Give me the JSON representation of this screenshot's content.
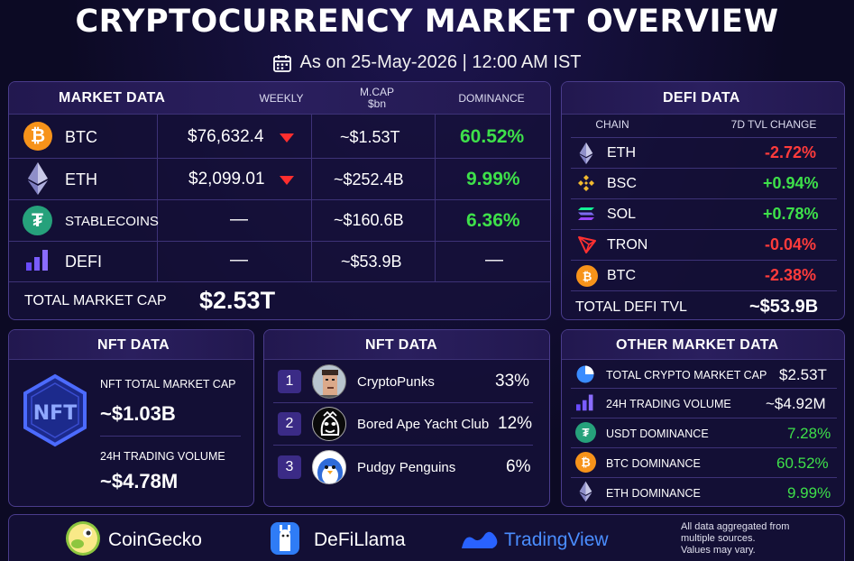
{
  "header": {
    "title": "CRYPTOCURRENCY MARKET OVERVIEW",
    "date_line": "As on 25-May-2026 | 12:00 AM IST",
    "icon": "calendar-icon"
  },
  "market_data": {
    "title": "MARKET DATA",
    "col_weekly": "WEEKLY",
    "col_mcap_line1": "M.CAP",
    "col_mcap_line2": "$bn",
    "col_dominance": "DOMINANCE",
    "rows": [
      {
        "name": "BTC",
        "price": "$76,632.4",
        "mcap": "~$1.53T",
        "dominance": "60.52%",
        "icon": "bitcoin-icon",
        "trend": "down"
      },
      {
        "name": "ETH",
        "price": "$2,099.01",
        "mcap": "~$252.4B",
        "dominance": "9.99%",
        "icon": "ethereum-icon",
        "trend": "down"
      },
      {
        "name": "STABLECOINS",
        "price": "—",
        "mcap": "~$160.6B",
        "dominance": "6.36%",
        "icon": "tether-icon"
      },
      {
        "name": "DEFI",
        "price": "—",
        "mcap": "~$53.9B",
        "dominance": "—",
        "icon": "bar-chart-icon"
      }
    ],
    "total_label": "TOTAL MARKET CAP",
    "total_value": "$2.53T"
  },
  "defi_data": {
    "title": "DEFI DATA",
    "col_chain": "CHAIN",
    "col_change": "7D TVL CHANGE",
    "rows": [
      {
        "chain": "ETH",
        "change": "-2.72%",
        "status": "negative",
        "icon": "ethereum-icon"
      },
      {
        "chain": "BSC",
        "change": "+0.94%",
        "status": "positive",
        "icon": "bnb-icon"
      },
      {
        "chain": "SOL",
        "change": "+0.78%",
        "status": "positive",
        "icon": "solana-icon"
      },
      {
        "chain": "TRON",
        "change": "-0.04%",
        "status": "negative",
        "icon": "tron-icon"
      },
      {
        "chain": "BTC",
        "change": "-2.38%",
        "status": "negative",
        "icon": "bitcoin-icon"
      }
    ],
    "total_label": "TOTAL DEFI TVL",
    "total_value": "~$53.9B"
  },
  "nft_data_left": {
    "title": "NFT DATA",
    "logo_text": "NFT",
    "mcap_label": "NFT TOTAL MARKET CAP",
    "mcap_value": "~$1.03B",
    "volume_label": "24H TRADING VOLUME",
    "volume_value": "~$4.78M"
  },
  "nft_data_right": {
    "title": "NFT DATA",
    "rows": [
      {
        "rank": "1",
        "name": "CryptoPunks",
        "share": "33%",
        "icon": "cryptopunk-avatar-icon"
      },
      {
        "rank": "2",
        "name": "Bored Ape Yacht Club",
        "share": "12%",
        "icon": "bored-ape-avatar-icon"
      },
      {
        "rank": "3",
        "name": "Pudgy Penguins",
        "share": "6%",
        "icon": "pudgy-penguin-avatar-icon"
      }
    ]
  },
  "other_market_data": {
    "title": "OTHER MARKET DATA",
    "rows": [
      {
        "label": "TOTAL CRYPTO MARKET CAP",
        "value": "$2.53T",
        "icon": "pie-chart-icon",
        "color": "#ffffff"
      },
      {
        "label": "24H TRADING VOLUME",
        "value": "~$4.92M",
        "icon": "bar-chart-icon",
        "color": "#ffffff"
      },
      {
        "label": "USDT DOMINANCE",
        "value": "7.28%",
        "icon": "tether-icon",
        "color": "#3ee04a"
      },
      {
        "label": "BTC DOMINANCE",
        "value": "60.52%",
        "icon": "bitcoin-icon",
        "color": "#3ee04a"
      },
      {
        "label": "ETH DOMINANCE",
        "value": "9.99%",
        "icon": "ethereum-icon",
        "color": "#3ee04a"
      }
    ]
  },
  "footer": {
    "sources": [
      {
        "name": "CoinGecko",
        "icon": "coingecko-logo-icon"
      },
      {
        "name": "DeFiLlama",
        "icon": "defillama-logo-icon"
      },
      {
        "name": "TradingView",
        "icon": "tradingview-logo-icon"
      }
    ],
    "note_line1": "All data aggregated from",
    "note_line2": "multiple sources.",
    "note_line3": "Values may vary."
  },
  "colors": {
    "positive": "#3ee04a",
    "negative": "#ff3b3b",
    "bitcoin": "#f7931a",
    "tether": "#26a17b",
    "panel_border": "#4a3c8c",
    "background": "#0c0a24"
  }
}
